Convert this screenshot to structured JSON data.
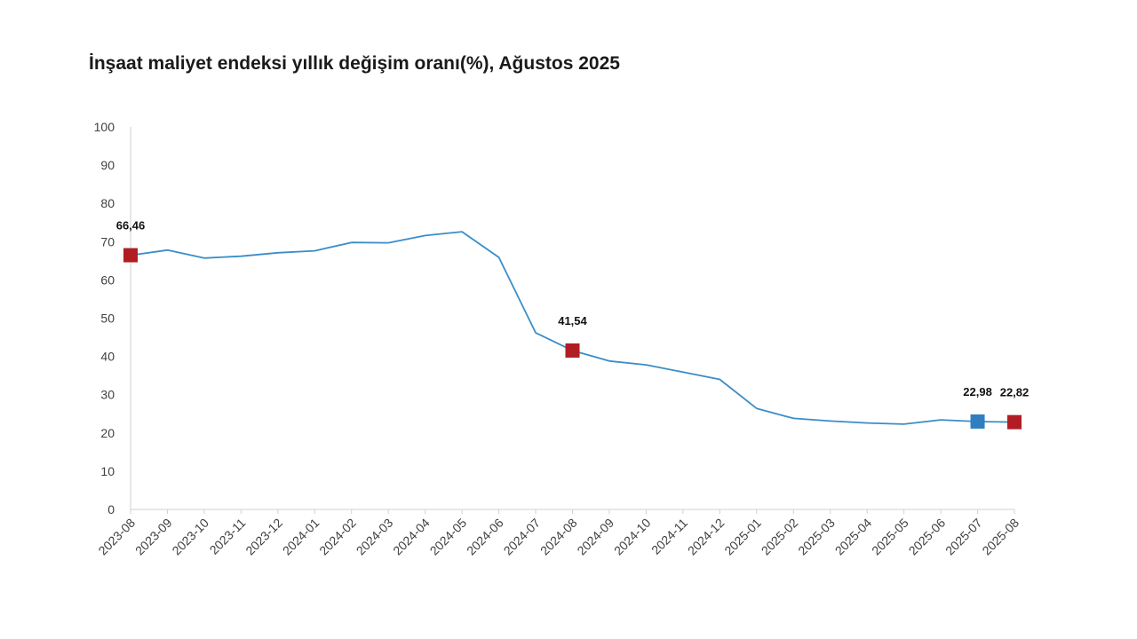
{
  "chart_data": {
    "type": "line",
    "title": "İnşaat maliyet endeksi yıllık değişim oranı(%), Ağustos 2025",
    "xlabel": "",
    "ylabel": "",
    "ylim": [
      0,
      100
    ],
    "yticks": [
      "0",
      "10",
      "20",
      "30",
      "40",
      "50",
      "60",
      "70",
      "80",
      "90",
      "100"
    ],
    "grid": false,
    "categories": [
      "2023-08",
      "2023-09",
      "2023-10",
      "2023-11",
      "2023-12",
      "2024-01",
      "2024-02",
      "2024-03",
      "2024-04",
      "2024-05",
      "2024-06",
      "2024-07",
      "2024-08",
      "2024-09",
      "2024-10",
      "2024-11",
      "2024-12",
      "2025-01",
      "2025-02",
      "2025-03",
      "2025-04",
      "2025-05",
      "2025-06",
      "2025-07",
      "2025-08"
    ],
    "series": [
      {
        "values": [
          66.46,
          67.8,
          65.7,
          66.2,
          67.1,
          67.6,
          69.8,
          69.7,
          71.6,
          72.6,
          65.9,
          46.2,
          41.54,
          38.8,
          37.8,
          35.9,
          34.0,
          26.4,
          23.8,
          23.1,
          22.6,
          22.3,
          23.4,
          22.98,
          22.82
        ],
        "color": "#3A8DC8"
      }
    ],
    "highlights": [
      {
        "index": 0,
        "label": "66,46",
        "color": "#B01E24"
      },
      {
        "index": 12,
        "label": "41,54",
        "color": "#B01E24"
      },
      {
        "index": 23,
        "label": "22,98",
        "color": "#2E7FC2"
      },
      {
        "index": 24,
        "label": "22,82",
        "color": "#B01E24"
      }
    ]
  }
}
